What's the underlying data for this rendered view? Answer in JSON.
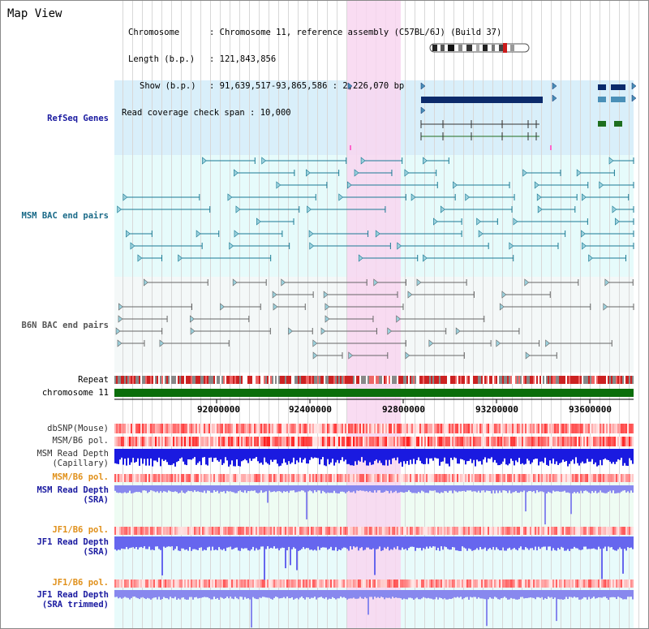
{
  "header": {
    "title": "Map View",
    "chromosome_label": "Chromosome",
    "chromosome_value": ": Chromosome 11, reference assembly (C57BL/6J) (Build 37)",
    "length_label": "Length (b.p.)",
    "length_value": ": 121,843,856",
    "show_label": "Show (b.p.)",
    "show_value": ": 91,639,517-93,865,586 : 2,226,070 bp",
    "coverage_label": "Read coverage check span",
    "coverage_value": ": 10,000"
  },
  "tracks": {
    "refseq": "RefSeq Genes",
    "msm_bac": "MSM BAC end pairs",
    "b6n_bac": "B6N BAC end pairs",
    "repeat": "Repeat",
    "chromosome": "chromosome 11",
    "dbsnp": "dbSNP(Mouse)",
    "msm_b6_pol_1": "MSM/B6 pol.",
    "msm_read_depth_cap_1": "MSM Read Depth",
    "msm_read_depth_cap_2": "(Capillary)",
    "msm_b6_pol_2": "MSM/B6 pol.",
    "msm_read_depth_sra_1": "MSM Read Depth",
    "msm_read_depth_sra_2": "(SRA)",
    "jf1_b6_pol_1": "JF1/B6 pol.",
    "jf1_read_depth_sra_1": "JF1 Read Depth",
    "jf1_read_depth_sra_2": "(SRA)",
    "jf1_b6_pol_2": "JF1/B6 pol.",
    "jf1_read_depth_trim_1": "JF1 Read Depth",
    "jf1_read_depth_trim_2": "(SRA trimmed)"
  },
  "axis": {
    "ticks": [
      "92000000",
      "92400000",
      "92800000",
      "93200000",
      "93600000"
    ]
  },
  "colors": {
    "refseq_bg": "#d9effa",
    "bac_bg": "#e6fbfb",
    "highlight": "#f8d6f0",
    "gene_dark": "#0b2a6b",
    "gene_green": "#1e6e1e",
    "msm_line": "#1a7a94",
    "b6n_line": "#666666",
    "chromosome_green": "#0b6e0b",
    "orange_label": "#e0901a",
    "blue_label": "#1a1aa0"
  }
}
